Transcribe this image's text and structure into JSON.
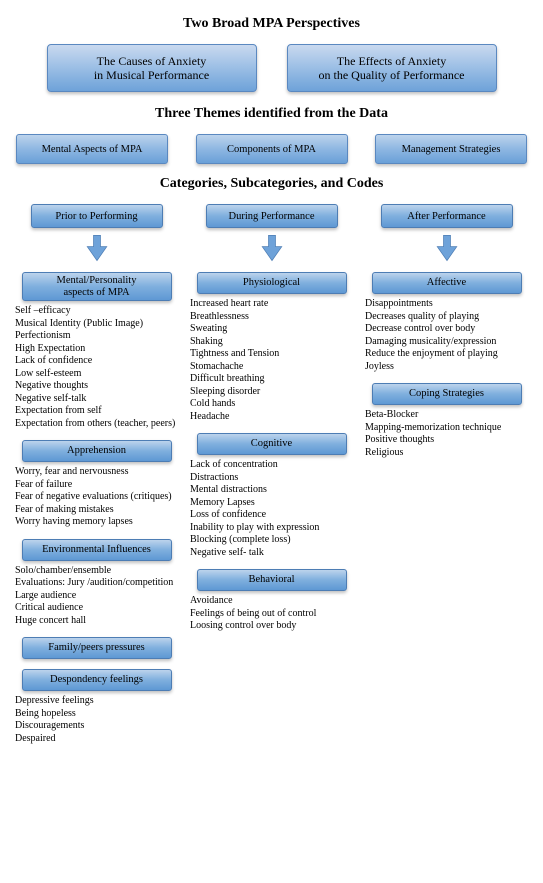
{
  "colors": {
    "box_top": "#bcd3ec",
    "box_mid": "#7fafde",
    "box_bot": "#5e98d4",
    "box_border": "#4d7db4",
    "arrow_fill": "#6ea2d9",
    "arrow_stroke": "#4d7db4",
    "text": "#000000",
    "bg": "#ffffff"
  },
  "titles": {
    "title1": "Two Broad MPA Perspectives",
    "title2": "Three Themes identified from the Data",
    "title3": "Categories, Subcategories, and Codes"
  },
  "perspectives": {
    "left": "The Causes of Anxiety\nin Musical Performance",
    "right": "The Effects of Anxiety\non the Quality of Performance"
  },
  "themes": {
    "t1": "Mental Aspects of MPA",
    "t2": "Components of MPA",
    "t3": "Management Strategies"
  },
  "col1": {
    "stage": "Prior to Performing",
    "cat1": "Mental/Personality\naspects of MPA",
    "cat1_items": [
      "Self –efficacy",
      "Musical Identity (Public Image)",
      "Perfectionism",
      "High Expectation",
      "Lack of confidence",
      "Low self-esteem",
      "Negative thoughts",
      "Negative self-talk",
      "Expectation from self",
      "Expectation from others (teacher, peers)"
    ],
    "cat2": "Apprehension",
    "cat2_items": [
      "Worry, fear and nervousness",
      "Fear of failure",
      "Fear of negative evaluations (critiques)",
      "Fear of making mistakes",
      "Worry having memory lapses"
    ],
    "cat3": "Environmental Influences",
    "cat3_items": [
      "Solo/chamber/ensemble",
      "Evaluations: Jury /audition/competition",
      "Large audience",
      "Critical audience",
      "Huge concert hall"
    ],
    "cat4": "Family/peers pressures",
    "cat5": "Despondency feelings",
    "cat5_items": [
      "Depressive feelings",
      "Being hopeless",
      "Discouragements",
      "Despaired"
    ]
  },
  "col2": {
    "stage": "During Performance",
    "cat1": "Physiological",
    "cat1_items": [
      "Increased heart rate",
      "Breathlessness",
      "Sweating",
      "Shaking",
      "Tightness and Tension",
      "Stomachache",
      "Difficult breathing",
      "Sleeping disorder",
      "Cold hands",
      "Headache"
    ],
    "cat2": "Cognitive",
    "cat2_items": [
      "Lack of concentration",
      "Distractions",
      "Mental distractions",
      "Memory Lapses",
      "Loss of confidence",
      "Inability to play with expression",
      "Blocking (complete loss)",
      "Negative self- talk"
    ],
    "cat3": "Behavioral",
    "cat3_items": [
      "Avoidance",
      "Feelings of being out of control",
      "Loosing control over body"
    ]
  },
  "col3": {
    "stage": "After Performance",
    "cat1": "Affective",
    "cat1_items": [
      "Disappointments",
      "Decreases quality of playing",
      "Decrease control over body",
      "Damaging musicality/expression",
      "Reduce the enjoyment of playing",
      "Joyless"
    ],
    "cat2": "Coping Strategies",
    "cat2_items": [
      "Beta-Blocker",
      "Mapping-memorization technique",
      "Positive thoughts",
      "Religious"
    ]
  }
}
